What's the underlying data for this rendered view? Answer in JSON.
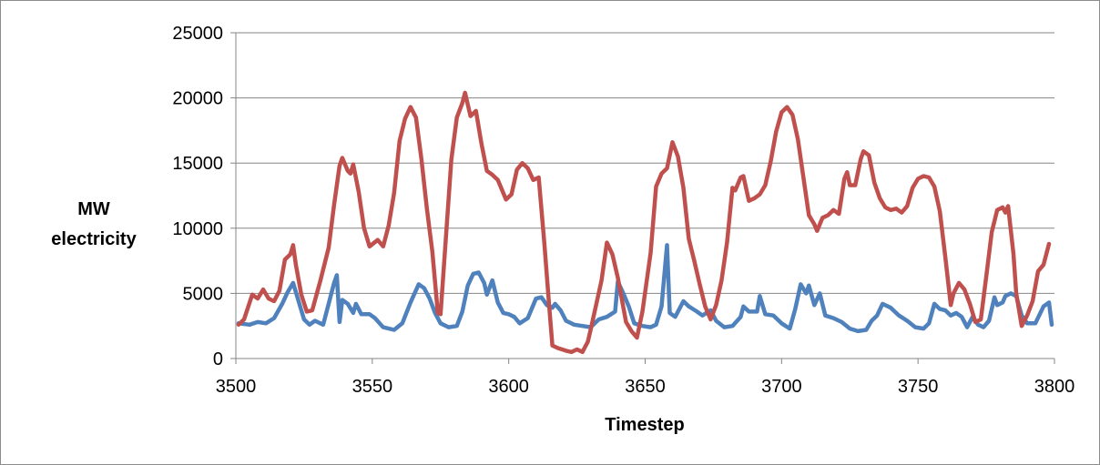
{
  "chart_data": {
    "type": "line",
    "title": "",
    "xlabel": "Timestep",
    "ylabel_lines": [
      "MW",
      "electricity"
    ],
    "xlim": [
      3500,
      3800
    ],
    "ylim": [
      0,
      25000
    ],
    "x_ticks": [
      3500,
      3550,
      3600,
      3650,
      3700,
      3750,
      3800
    ],
    "y_ticks": [
      0,
      5000,
      10000,
      15000,
      20000,
      25000
    ],
    "grid": "horizontal",
    "legend": "none",
    "series": [
      {
        "color": "#4f81bd",
        "points": [
          [
            3501,
            2700
          ],
          [
            3505,
            2600
          ],
          [
            3508,
            2800
          ],
          [
            3511,
            2700
          ],
          [
            3514,
            3100
          ],
          [
            3517,
            4200
          ],
          [
            3519,
            5100
          ],
          [
            3521,
            5800
          ],
          [
            3523,
            4400
          ],
          [
            3525,
            3000
          ],
          [
            3527,
            2600
          ],
          [
            3529,
            2900
          ],
          [
            3532,
            2600
          ],
          [
            3534,
            4200
          ],
          [
            3536,
            5800
          ],
          [
            3537,
            6400
          ],
          [
            3538,
            2800
          ],
          [
            3539,
            4500
          ],
          [
            3541,
            4200
          ],
          [
            3543,
            3500
          ],
          [
            3544,
            4200
          ],
          [
            3546,
            3400
          ],
          [
            3549,
            3400
          ],
          [
            3551,
            3100
          ],
          [
            3554,
            2400
          ],
          [
            3558,
            2200
          ],
          [
            3561,
            2700
          ],
          [
            3564,
            4300
          ],
          [
            3567,
            5700
          ],
          [
            3569,
            5400
          ],
          [
            3571,
            4600
          ],
          [
            3573,
            3500
          ],
          [
            3575,
            2700
          ],
          [
            3578,
            2400
          ],
          [
            3581,
            2500
          ],
          [
            3583,
            3600
          ],
          [
            3585,
            5600
          ],
          [
            3587,
            6500
          ],
          [
            3589,
            6600
          ],
          [
            3591,
            5800
          ],
          [
            3592,
            4900
          ],
          [
            3594,
            6000
          ],
          [
            3596,
            4300
          ],
          [
            3598,
            3500
          ],
          [
            3600,
            3400
          ],
          [
            3602,
            3200
          ],
          [
            3604,
            2700
          ],
          [
            3607,
            3100
          ],
          [
            3610,
            4600
          ],
          [
            3612,
            4700
          ],
          [
            3614,
            4100
          ],
          [
            3616,
            3900
          ],
          [
            3617,
            4200
          ],
          [
            3619,
            3700
          ],
          [
            3621,
            2900
          ],
          [
            3624,
            2600
          ],
          [
            3627,
            2500
          ],
          [
            3630,
            2400
          ],
          [
            3633,
            3000
          ],
          [
            3636,
            3200
          ],
          [
            3639,
            3600
          ],
          [
            3640,
            5900
          ],
          [
            3642,
            5000
          ],
          [
            3644,
            4000
          ],
          [
            3646,
            2700
          ],
          [
            3649,
            2500
          ],
          [
            3652,
            2400
          ],
          [
            3654,
            2600
          ],
          [
            3656,
            4000
          ],
          [
            3658,
            8700
          ],
          [
            3659,
            3500
          ],
          [
            3661,
            3200
          ],
          [
            3664,
            4400
          ],
          [
            3666,
            4000
          ],
          [
            3669,
            3600
          ],
          [
            3671,
            3300
          ],
          [
            3674,
            3700
          ],
          [
            3676,
            2900
          ],
          [
            3679,
            2400
          ],
          [
            3682,
            2500
          ],
          [
            3685,
            3200
          ],
          [
            3686,
            4000
          ],
          [
            3688,
            3600
          ],
          [
            3691,
            3600
          ],
          [
            3692,
            4800
          ],
          [
            3694,
            3400
          ],
          [
            3697,
            3300
          ],
          [
            3700,
            2700
          ],
          [
            3703,
            2300
          ],
          [
            3705,
            3800
          ],
          [
            3707,
            5700
          ],
          [
            3709,
            5000
          ],
          [
            3710,
            5600
          ],
          [
            3712,
            4100
          ],
          [
            3714,
            5000
          ],
          [
            3716,
            3300
          ],
          [
            3719,
            3100
          ],
          [
            3722,
            2800
          ],
          [
            3725,
            2300
          ],
          [
            3728,
            2100
          ],
          [
            3731,
            2200
          ],
          [
            3733,
            2900
          ],
          [
            3735,
            3300
          ],
          [
            3737,
            4200
          ],
          [
            3740,
            3900
          ],
          [
            3743,
            3300
          ],
          [
            3746,
            2900
          ],
          [
            3749,
            2400
          ],
          [
            3752,
            2300
          ],
          [
            3754,
            2700
          ],
          [
            3756,
            4200
          ],
          [
            3758,
            3800
          ],
          [
            3760,
            3700
          ],
          [
            3762,
            3300
          ],
          [
            3764,
            3500
          ],
          [
            3766,
            3200
          ],
          [
            3768,
            2400
          ],
          [
            3770,
            3200
          ],
          [
            3772,
            2600
          ],
          [
            3774,
            2400
          ],
          [
            3776,
            2900
          ],
          [
            3778,
            4700
          ],
          [
            3779,
            4100
          ],
          [
            3781,
            4300
          ],
          [
            3782,
            4800
          ],
          [
            3784,
            5000
          ],
          [
            3786,
            4800
          ],
          [
            3788,
            3300
          ],
          [
            3790,
            2700
          ],
          [
            3793,
            2700
          ],
          [
            3796,
            4000
          ],
          [
            3798,
            4300
          ],
          [
            3799,
            2600
          ]
        ]
      },
      {
        "color": "#c0504d",
        "points": [
          [
            3501,
            2600
          ],
          [
            3503,
            3000
          ],
          [
            3506,
            4900
          ],
          [
            3508,
            4600
          ],
          [
            3510,
            5300
          ],
          [
            3512,
            4600
          ],
          [
            3514,
            4400
          ],
          [
            3516,
            5200
          ],
          [
            3518,
            7600
          ],
          [
            3520,
            8000
          ],
          [
            3521,
            8700
          ],
          [
            3522,
            7200
          ],
          [
            3524,
            4900
          ],
          [
            3526,
            3600
          ],
          [
            3528,
            3700
          ],
          [
            3531,
            6000
          ],
          [
            3534,
            8500
          ],
          [
            3536,
            11800
          ],
          [
            3538,
            14800
          ],
          [
            3539,
            15400
          ],
          [
            3541,
            14400
          ],
          [
            3542,
            14200
          ],
          [
            3543,
            14900
          ],
          [
            3545,
            12800
          ],
          [
            3547,
            10000
          ],
          [
            3549,
            8600
          ],
          [
            3552,
            9100
          ],
          [
            3554,
            8600
          ],
          [
            3556,
            10200
          ],
          [
            3558,
            12700
          ],
          [
            3560,
            16700
          ],
          [
            3562,
            18400
          ],
          [
            3564,
            19300
          ],
          [
            3566,
            18500
          ],
          [
            3568,
            15300
          ],
          [
            3570,
            11500
          ],
          [
            3572,
            8200
          ],
          [
            3574,
            3500
          ],
          [
            3575,
            3400
          ],
          [
            3577,
            9300
          ],
          [
            3579,
            15300
          ],
          [
            3581,
            18500
          ],
          [
            3583,
            19600
          ],
          [
            3584,
            20400
          ],
          [
            3586,
            18600
          ],
          [
            3588,
            19000
          ],
          [
            3590,
            16500
          ],
          [
            3592,
            14400
          ],
          [
            3594,
            14100
          ],
          [
            3596,
            13700
          ],
          [
            3599,
            12200
          ],
          [
            3601,
            12600
          ],
          [
            3603,
            14500
          ],
          [
            3605,
            15000
          ],
          [
            3607,
            14600
          ],
          [
            3609,
            13700
          ],
          [
            3611,
            13900
          ],
          [
            3613,
            9000
          ],
          [
            3615,
            3600
          ],
          [
            3616,
            1000
          ],
          [
            3618,
            800
          ],
          [
            3621,
            600
          ],
          [
            3623,
            500
          ],
          [
            3625,
            700
          ],
          [
            3627,
            500
          ],
          [
            3629,
            1300
          ],
          [
            3630,
            2200
          ],
          [
            3632,
            4100
          ],
          [
            3634,
            6000
          ],
          [
            3636,
            8900
          ],
          [
            3638,
            8000
          ],
          [
            3640,
            6200
          ],
          [
            3643,
            2800
          ],
          [
            3645,
            2100
          ],
          [
            3647,
            1600
          ],
          [
            3649,
            3600
          ],
          [
            3652,
            8100
          ],
          [
            3654,
            13200
          ],
          [
            3656,
            14200
          ],
          [
            3658,
            14600
          ],
          [
            3660,
            16600
          ],
          [
            3662,
            15500
          ],
          [
            3664,
            13100
          ],
          [
            3666,
            9200
          ],
          [
            3668,
            7500
          ],
          [
            3670,
            5700
          ],
          [
            3672,
            4000
          ],
          [
            3674,
            3000
          ],
          [
            3676,
            4100
          ],
          [
            3678,
            6000
          ],
          [
            3680,
            8900
          ],
          [
            3682,
            13100
          ],
          [
            3683,
            12900
          ],
          [
            3685,
            13900
          ],
          [
            3686,
            14000
          ],
          [
            3688,
            12100
          ],
          [
            3690,
            12300
          ],
          [
            3692,
            12600
          ],
          [
            3694,
            13300
          ],
          [
            3696,
            15100
          ],
          [
            3698,
            17400
          ],
          [
            3700,
            18900
          ],
          [
            3702,
            19300
          ],
          [
            3704,
            18700
          ],
          [
            3706,
            16800
          ],
          [
            3708,
            13900
          ],
          [
            3710,
            11000
          ],
          [
            3712,
            10300
          ],
          [
            3713,
            9800
          ],
          [
            3715,
            10800
          ],
          [
            3717,
            11000
          ],
          [
            3719,
            11400
          ],
          [
            3721,
            11100
          ],
          [
            3723,
            13800
          ],
          [
            3724,
            14300
          ],
          [
            3725,
            13300
          ],
          [
            3727,
            13300
          ],
          [
            3729,
            15300
          ],
          [
            3730,
            15900
          ],
          [
            3732,
            15600
          ],
          [
            3734,
            13500
          ],
          [
            3736,
            12300
          ],
          [
            3738,
            11600
          ],
          [
            3740,
            11400
          ],
          [
            3742,
            11500
          ],
          [
            3744,
            11200
          ],
          [
            3746,
            11700
          ],
          [
            3748,
            13100
          ],
          [
            3750,
            13800
          ],
          [
            3752,
            14000
          ],
          [
            3754,
            13900
          ],
          [
            3756,
            13200
          ],
          [
            3758,
            11300
          ],
          [
            3760,
            7800
          ],
          [
            3762,
            4100
          ],
          [
            3763,
            5000
          ],
          [
            3765,
            5800
          ],
          [
            3767,
            5300
          ],
          [
            3769,
            4200
          ],
          [
            3771,
            2800
          ],
          [
            3773,
            3000
          ],
          [
            3775,
            6300
          ],
          [
            3777,
            9700
          ],
          [
            3779,
            11400
          ],
          [
            3781,
            11600
          ],
          [
            3782,
            11200
          ],
          [
            3783,
            11700
          ],
          [
            3785,
            8000
          ],
          [
            3786,
            5000
          ],
          [
            3788,
            2500
          ],
          [
            3790,
            3300
          ],
          [
            3792,
            4400
          ],
          [
            3794,
            6700
          ],
          [
            3796,
            7200
          ],
          [
            3797,
            8000
          ],
          [
            3798,
            8800
          ]
        ]
      }
    ]
  }
}
